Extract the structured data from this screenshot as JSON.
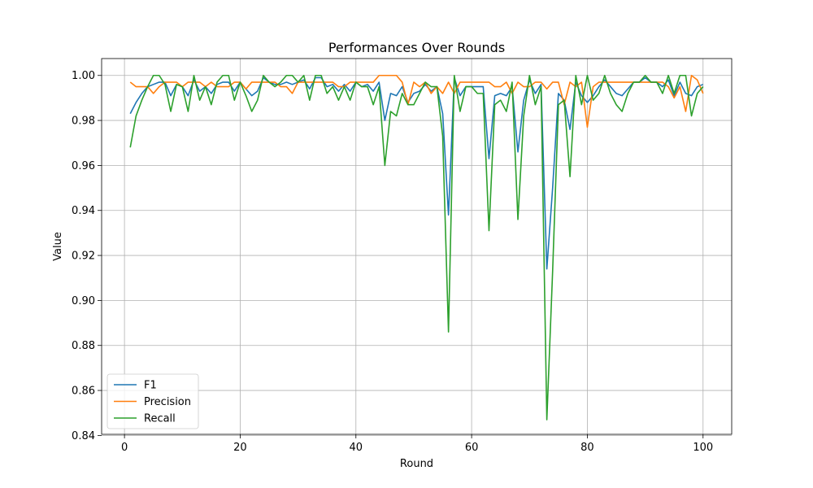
{
  "chart_data": {
    "type": "line",
    "title": "Performances Over Rounds",
    "xlabel": "Round",
    "ylabel": "Value",
    "xlim": [
      -3.95,
      104.95
    ],
    "ylim": [
      0.8405,
      1.0075
    ],
    "xticks": [
      0,
      20,
      40,
      60,
      80,
      100
    ],
    "yticks": [
      0.84,
      0.86,
      0.88,
      0.9,
      0.92,
      0.94,
      0.96,
      0.98,
      1.0
    ],
    "ytick_labels": [
      "0.84",
      "0.86",
      "0.88",
      "0.90",
      "0.92",
      "0.94",
      "0.96",
      "0.98",
      "1.00"
    ],
    "grid": true,
    "legend_position": "lower-left",
    "x": [
      1,
      2,
      3,
      4,
      5,
      6,
      7,
      8,
      9,
      10,
      11,
      12,
      13,
      14,
      15,
      16,
      17,
      18,
      19,
      20,
      21,
      22,
      23,
      24,
      25,
      26,
      27,
      28,
      29,
      30,
      31,
      32,
      33,
      34,
      35,
      36,
      37,
      38,
      39,
      40,
      41,
      42,
      43,
      44,
      45,
      46,
      47,
      48,
      49,
      50,
      51,
      52,
      53,
      54,
      55,
      56,
      57,
      58,
      59,
      60,
      61,
      62,
      63,
      64,
      65,
      66,
      67,
      68,
      69,
      70,
      71,
      72,
      73,
      74,
      75,
      76,
      77,
      78,
      79,
      80,
      81,
      82,
      83,
      84,
      85,
      86,
      87,
      88,
      89,
      90,
      91,
      92,
      93,
      94,
      95,
      96,
      97,
      98,
      99,
      100
    ],
    "series": [
      {
        "name": "F1",
        "color": "#1f77b4",
        "values": [
          0.983,
          0.988,
          0.992,
          0.995,
          0.996,
          0.997,
          0.997,
          0.991,
          0.996,
          0.995,
          0.991,
          0.998,
          0.993,
          0.995,
          0.992,
          0.996,
          0.997,
          0.997,
          0.993,
          0.997,
          0.994,
          0.991,
          0.993,
          0.999,
          0.997,
          0.996,
          0.996,
          0.997,
          0.996,
          0.997,
          0.998,
          0.994,
          0.999,
          0.999,
          0.995,
          0.996,
          0.993,
          0.996,
          0.993,
          0.997,
          0.995,
          0.996,
          0.993,
          0.997,
          0.98,
          0.992,
          0.991,
          0.995,
          0.988,
          0.992,
          0.993,
          0.996,
          0.993,
          0.995,
          0.983,
          0.938,
          0.999,
          0.991,
          0.995,
          0.995,
          0.995,
          0.995,
          0.963,
          0.991,
          0.992,
          0.991,
          0.995,
          0.966,
          0.989,
          0.998,
          0.992,
          0.996,
          0.914,
          0.95,
          0.992,
          0.989,
          0.976,
          0.997,
          0.991,
          0.988,
          0.991,
          0.995,
          0.998,
          0.995,
          0.992,
          0.991,
          0.994,
          0.997,
          0.997,
          0.999,
          0.997,
          0.997,
          0.995,
          0.998,
          0.991,
          0.997,
          0.992,
          0.991,
          0.995,
          0.996
        ]
      },
      {
        "name": "Precision",
        "color": "#ff7f0e",
        "values": [
          0.997,
          0.995,
          0.995,
          0.995,
          0.992,
          0.995,
          0.997,
          0.997,
          0.997,
          0.995,
          0.997,
          0.997,
          0.997,
          0.995,
          0.997,
          0.995,
          0.995,
          0.995,
          0.997,
          0.997,
          0.994,
          0.997,
          0.997,
          0.997,
          0.997,
          0.997,
          0.995,
          0.995,
          0.992,
          0.997,
          0.997,
          0.997,
          0.997,
          0.997,
          0.997,
          0.997,
          0.995,
          0.995,
          0.997,
          0.997,
          0.997,
          0.997,
          0.997,
          1.0,
          1.0,
          1.0,
          1.0,
          0.997,
          0.987,
          0.997,
          0.995,
          0.997,
          0.992,
          0.995,
          0.992,
          0.997,
          0.992,
          0.997,
          0.997,
          0.997,
          0.997,
          0.997,
          0.997,
          0.995,
          0.995,
          0.997,
          0.992,
          0.997,
          0.995,
          0.995,
          0.997,
          0.997,
          0.994,
          0.997,
          0.997,
          0.987,
          0.997,
          0.995,
          0.997,
          0.977,
          0.995,
          0.997,
          0.997,
          0.997,
          0.997,
          0.997,
          0.997,
          0.997,
          0.997,
          0.997,
          0.997,
          0.997,
          0.997,
          0.995,
          0.99,
          0.995,
          0.984,
          1.0,
          0.998,
          0.992
        ]
      },
      {
        "name": "Recall",
        "color": "#2ca02c",
        "values": [
          0.968,
          0.982,
          0.989,
          0.995,
          1.0,
          1.0,
          0.996,
          0.984,
          0.996,
          0.995,
          0.984,
          1.0,
          0.989,
          0.995,
          0.987,
          0.997,
          1.0,
          1.0,
          0.989,
          0.997,
          0.991,
          0.984,
          0.989,
          1.0,
          0.997,
          0.995,
          0.997,
          1.0,
          1.0,
          0.997,
          1.0,
          0.989,
          1.0,
          1.0,
          0.992,
          0.995,
          0.989,
          0.995,
          0.989,
          0.997,
          0.995,
          0.995,
          0.987,
          0.995,
          0.96,
          0.984,
          0.982,
          0.992,
          0.987,
          0.987,
          0.992,
          0.997,
          0.995,
          0.995,
          0.973,
          0.886,
          1.0,
          0.984,
          0.995,
          0.995,
          0.992,
          0.992,
          0.931,
          0.987,
          0.989,
          0.984,
          0.997,
          0.936,
          0.982,
          1.0,
          0.987,
          0.995,
          0.847,
          0.913,
          0.987,
          0.989,
          0.955,
          1.0,
          0.987,
          1.0,
          0.989,
          0.992,
          1.0,
          0.992,
          0.987,
          0.984,
          0.992,
          0.997,
          0.997,
          1.0,
          0.997,
          0.997,
          0.992,
          1.0,
          0.992,
          1.0,
          1.0,
          0.982,
          0.992,
          0.995
        ]
      }
    ]
  }
}
